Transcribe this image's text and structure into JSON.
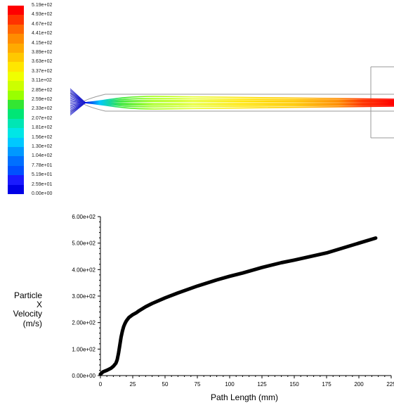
{
  "colormap": {
    "labels": [
      "5.19e+02",
      "4.93e+02",
      "4.67e+02",
      "4.41e+02",
      "4.15e+02",
      "3.89e+02",
      "3.63e+02",
      "3.37e+02",
      "3.11e+02",
      "2.85e+02",
      "2.59e+02",
      "2.33e+02",
      "2.07e+02",
      "1.81e+02",
      "1.56e+02",
      "1.30e+02",
      "1.04e+02",
      "7.78e+01",
      "5.19e+01",
      "2.59e+01",
      "0.00e+00"
    ],
    "colors": [
      "#ff0000",
      "#ff3300",
      "#ff6600",
      "#ff8c00",
      "#ffaa00",
      "#ffc800",
      "#ffe600",
      "#f0ff00",
      "#ccff00",
      "#99ff00",
      "#33e633",
      "#00e676",
      "#00e6b4",
      "#00e6e6",
      "#00c8ff",
      "#0099ff",
      "#0070ff",
      "#0050ff",
      "#1a1aff",
      "#0000e6"
    ]
  },
  "chart_data": {
    "type": "line",
    "xlabel": "Path Length (mm)",
    "ylabel_lines": [
      "Particle",
      "X",
      "Velocity",
      "(m/s)"
    ],
    "x_ticks": [
      "0",
      "25",
      "50",
      "75",
      "100",
      "125",
      "150",
      "175",
      "200",
      "225"
    ],
    "y_ticks": [
      "0.00e+00",
      "1.00e+02",
      "2.00e+02",
      "3.00e+02",
      "4.00e+02",
      "5.00e+02",
      "6.00e+02"
    ],
    "xlim": [
      0,
      225
    ],
    "ylim": [
      0,
      600
    ],
    "series": [
      {
        "color": "#000000",
        "x": [
          0,
          2,
          5,
          8,
          10,
          12,
          13,
          14,
          15,
          16,
          17,
          18,
          19,
          20,
          22,
          25,
          28,
          30,
          35,
          40,
          50,
          60,
          75,
          90,
          100,
          110,
          125,
          140,
          150,
          175,
          200,
          213
        ],
        "y": [
          5,
          14,
          20,
          27,
          35,
          47,
          60,
          85,
          115,
          145,
          168,
          185,
          197,
          206,
          219,
          230,
          238,
          245,
          260,
          272,
          293,
          312,
          338,
          361,
          375,
          387,
          408,
          426,
          436,
          463,
          500,
          519
        ]
      }
    ]
  }
}
